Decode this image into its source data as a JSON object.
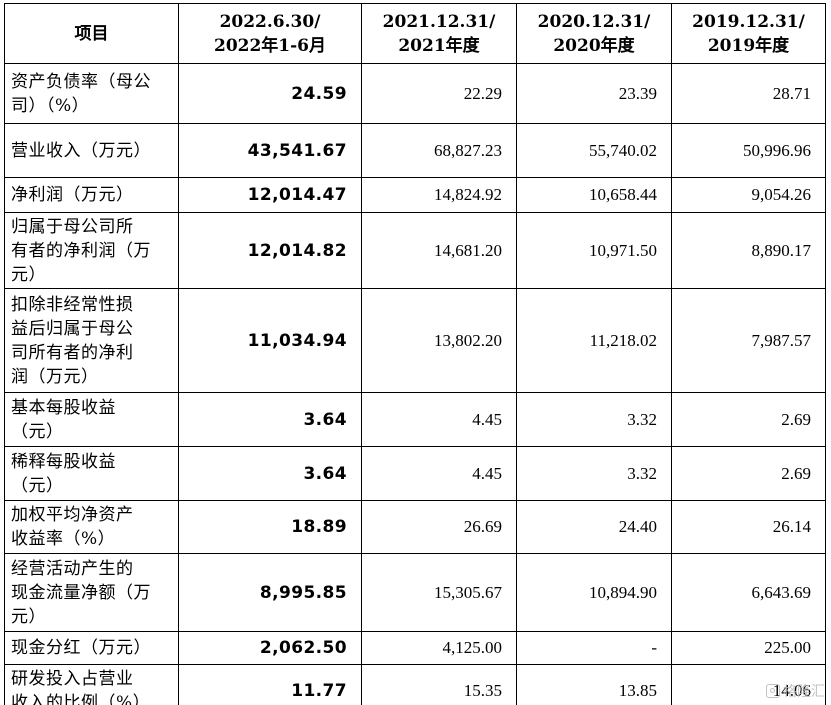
{
  "table": {
    "headers": [
      [
        "项目"
      ],
      [
        "2022.6.30/",
        "2022年1-6月"
      ],
      [
        "2021.12.31/",
        "2021年度"
      ],
      [
        "2020.12.31/",
        "2020年度"
      ],
      [
        "2019.12.31/",
        "2019年度"
      ]
    ],
    "rows": [
      {
        "label": [
          "资产负债率（母公",
          "司）（%）"
        ],
        "values": [
          "24.59",
          "22.29",
          "23.39",
          "28.71"
        ]
      },
      {
        "label": [
          "营业收入（万元）"
        ],
        "values": [
          "43,541.67",
          "68,827.23",
          "55,740.02",
          "50,996.96"
        ]
      },
      {
        "label": [
          "净利润（万元）"
        ],
        "values": [
          "12,014.47",
          "14,824.92",
          "10,658.44",
          "9,054.26"
        ]
      },
      {
        "label": [
          "归属于母公司所",
          "有者的净利润（万",
          "元）"
        ],
        "values": [
          "12,014.82",
          "14,681.20",
          "10,971.50",
          "8,890.17"
        ]
      },
      {
        "label": [
          "扣除非经常性损",
          "益后归属于母公",
          "司所有者的净利",
          "润（万元）"
        ],
        "values": [
          "11,034.94",
          "13,802.20",
          "11,218.02",
          "7,987.57"
        ]
      },
      {
        "label": [
          "基本每股收益",
          "（元）"
        ],
        "values": [
          "3.64",
          "4.45",
          "3.32",
          "2.69"
        ]
      },
      {
        "label": [
          "稀释每股收益",
          "（元）"
        ],
        "values": [
          "3.64",
          "4.45",
          "3.32",
          "2.69"
        ]
      },
      {
        "label": [
          "加权平均净资产",
          "收益率（%）"
        ],
        "values": [
          "18.89",
          "26.69",
          "24.40",
          "26.14"
        ]
      },
      {
        "label": [
          "经营活动产生的",
          "现金流量净额（万",
          "元）"
        ],
        "values": [
          "8,995.85",
          "15,305.67",
          "10,894.90",
          "6,643.69"
        ]
      },
      {
        "label": [
          "现金分红（万元）"
        ],
        "values": [
          "2,062.50",
          "4,125.00",
          "-",
          "225.00"
        ]
      },
      {
        "label": [
          "研发投入占营业",
          "收入的比例（%）"
        ],
        "values": [
          "11.77",
          "15.35",
          "13.85",
          "14.06"
        ]
      }
    ]
  },
  "watermark": {
    "icon": "gelonghui-logo-icon",
    "text": "格隆汇"
  }
}
